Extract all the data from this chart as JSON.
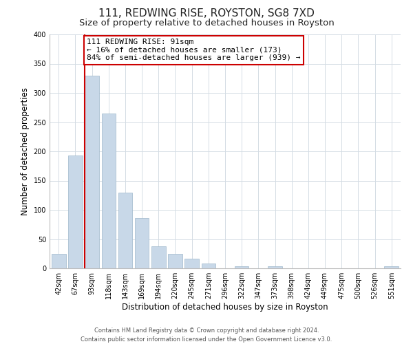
{
  "title": "111, REDWING RISE, ROYSTON, SG8 7XD",
  "subtitle": "Size of property relative to detached houses in Royston",
  "xlabel": "Distribution of detached houses by size in Royston",
  "ylabel": "Number of detached properties",
  "bin_labels": [
    "42sqm",
    "67sqm",
    "93sqm",
    "118sqm",
    "143sqm",
    "169sqm",
    "194sqm",
    "220sqm",
    "245sqm",
    "271sqm",
    "296sqm",
    "322sqm",
    "347sqm",
    "373sqm",
    "398sqm",
    "424sqm",
    "449sqm",
    "475sqm",
    "500sqm",
    "526sqm",
    "551sqm"
  ],
  "bar_heights": [
    25,
    193,
    330,
    265,
    130,
    86,
    38,
    25,
    17,
    8,
    0,
    4,
    0,
    4,
    0,
    0,
    0,
    0,
    0,
    0,
    3
  ],
  "bar_color": "#c8d8e8",
  "bar_edge_color": "#9fb8cc",
  "property_line_color": "#cc0000",
  "annotation_line1": "111 REDWING RISE: 91sqm",
  "annotation_line2": "← 16% of detached houses are smaller (173)",
  "annotation_line3": "84% of semi-detached houses are larger (939) →",
  "annotation_box_color": "#ffffff",
  "annotation_box_edge_color": "#cc0000",
  "ylim": [
    0,
    400
  ],
  "yticks": [
    0,
    50,
    100,
    150,
    200,
    250,
    300,
    350,
    400
  ],
  "footer_line1": "Contains HM Land Registry data © Crown copyright and database right 2024.",
  "footer_line2": "Contains public sector information licensed under the Open Government Licence v3.0.",
  "background_color": "#ffffff",
  "grid_color": "#d4dce4",
  "title_fontsize": 11,
  "subtitle_fontsize": 9.5,
  "tick_fontsize": 7,
  "label_fontsize": 8.5,
  "footer_fontsize": 6,
  "annotation_fontsize": 8
}
